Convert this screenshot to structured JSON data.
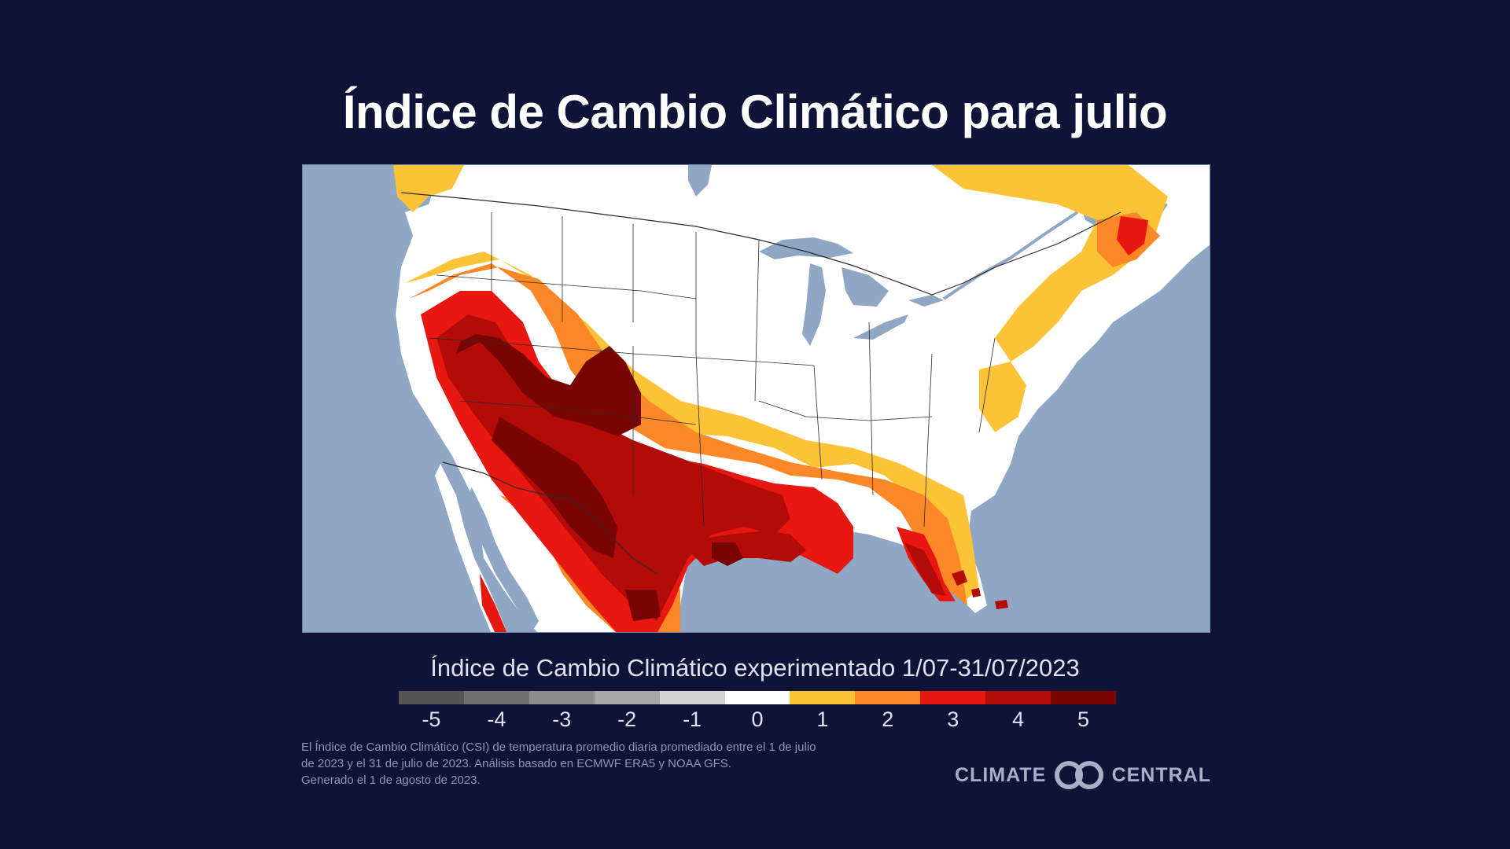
{
  "title": "Índice de Cambio Climático para julio",
  "legend": {
    "title": "Índice de Cambio Climático experimentado 1/07-31/07/2023",
    "ticks": [
      "-5",
      "-4",
      "-3",
      "-2",
      "-1",
      "0",
      "1",
      "2",
      "3",
      "4",
      "5"
    ],
    "colors": [
      "#555555",
      "#707070",
      "#8c8c8c",
      "#a8a8a8",
      "#d3d3d3",
      "#ffffff",
      "#fdc336",
      "#fc8726",
      "#e8170f",
      "#b30b08",
      "#7a0404"
    ]
  },
  "footnote": {
    "line1": "El Índice de Cambio Climático (CSI) de temperatura promedio diaria promediado entre el 1 de julio",
    "line2": "de 2023 y el 31 de julio de 2023. Análisis basado en ECMWF ERA5 y NOAA GFS.",
    "line3": "Generado el 1 de agosto de 2023."
  },
  "logo": {
    "left_text": "CLIMATE",
    "right_text": "CENTRAL",
    "icon": "climate-central-rings-icon"
  },
  "map": {
    "ocean_color": "#8fa7c5",
    "land_color": "#ffffff",
    "lakes_color": "#8fa7c5",
    "border_color": "#2b2b2b",
    "regions": [
      {
        "name": "desert-southwest-core",
        "csi": 5
      },
      {
        "name": "california-interior",
        "csi": 4
      },
      {
        "name": "texas-gulf-coast",
        "csi": 4
      },
      {
        "name": "south-florida",
        "csi": 4
      },
      {
        "name": "northern-mexico",
        "csi": 3
      },
      {
        "name": "great-basin",
        "csi": 2
      },
      {
        "name": "southeast-us",
        "csi": 1
      },
      {
        "name": "maritime-canada",
        "csi": 3
      },
      {
        "name": "great-plains-midwest",
        "csi": 0
      }
    ]
  }
}
